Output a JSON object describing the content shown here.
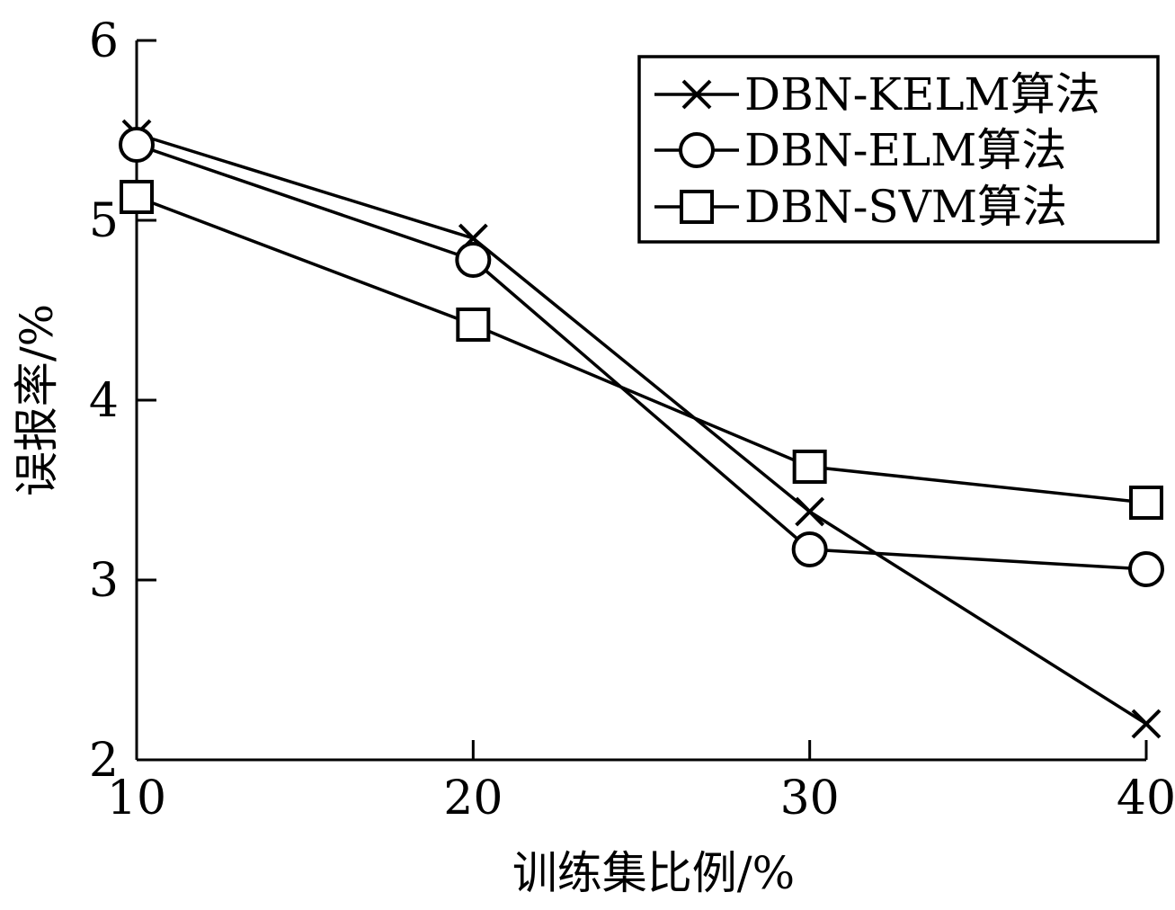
{
  "chart_data": {
    "type": "line",
    "title": "",
    "xlabel": "训练集比例/%",
    "ylabel": "误报率/%",
    "x": [
      10,
      20,
      30,
      40
    ],
    "xlim": [
      10,
      40
    ],
    "ylim": [
      2,
      6
    ],
    "xticks": [
      "10",
      "20",
      "30",
      "40"
    ],
    "yticks": [
      "2",
      "3",
      "4",
      "5",
      "6"
    ],
    "grid": false,
    "legend_position": "top-right",
    "series": [
      {
        "name": "DBN-KELM算法",
        "marker": "x",
        "values": [
          5.48,
          4.9,
          3.38,
          2.2
        ]
      },
      {
        "name": "DBN-ELM算法",
        "marker": "circle",
        "values": [
          5.42,
          4.78,
          3.17,
          3.06
        ]
      },
      {
        "name": "DBN-SVM算法",
        "marker": "square",
        "values": [
          5.13,
          4.42,
          3.63,
          3.43
        ]
      }
    ]
  }
}
